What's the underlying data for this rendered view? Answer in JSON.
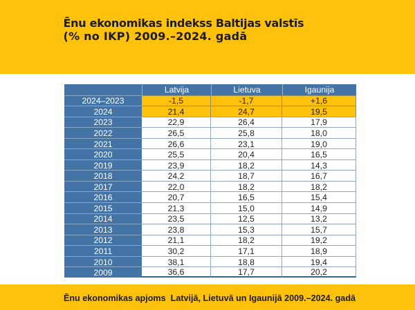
{
  "page": {
    "background": "#ffffff",
    "accent_yellow": "#fec20d",
    "accent_blue": "#4473a5",
    "border_blue": "#36608f",
    "text_dark": "#1c1c26"
  },
  "header": {
    "title_line1": "Ēnu ekonomikas indekss Baltijas valstīs",
    "title_line2": "(% no IKP) 2009.–2024. gadā"
  },
  "footer": {
    "caption": "Ēnu ekonomikas apjoms  Latvijā, Lietuvā un Igaunijā 2009.–2024. gadā"
  },
  "chart_data": {
    "type": "table",
    "title": "Ēnu ekonomikas indekss Baltijas valstīs (% no IKP) 2009.–2024. gadā",
    "columns": [
      "",
      "Latvija",
      "Lietuva",
      "Igaunija"
    ],
    "rows": [
      {
        "label": "2024–2023",
        "values": [
          "-1,5",
          "-1,7",
          "+1,6"
        ],
        "highlight": true
      },
      {
        "label": "2024",
        "values": [
          "21,4",
          "24,7",
          "19,5"
        ],
        "highlight": true
      },
      {
        "label": "2023",
        "values": [
          "22,9",
          "26,4",
          "17,9"
        ],
        "highlight": false
      },
      {
        "label": "2022",
        "values": [
          "26,5",
          "25,8",
          "18,0"
        ],
        "highlight": false
      },
      {
        "label": "2021",
        "values": [
          "26,6",
          "23,1",
          "19,0"
        ],
        "highlight": false
      },
      {
        "label": "2020",
        "values": [
          "25,5",
          "20,4",
          "16,5"
        ],
        "highlight": false
      },
      {
        "label": "2019",
        "values": [
          "23,9",
          "18,2",
          "14,3"
        ],
        "highlight": false
      },
      {
        "label": "2018",
        "values": [
          "24,2",
          "18,7",
          "16,7"
        ],
        "highlight": false
      },
      {
        "label": "2017",
        "values": [
          "22,0",
          "18,2",
          "18,2"
        ],
        "highlight": false
      },
      {
        "label": "2016",
        "values": [
          "20,7",
          "16,5",
          "15,4"
        ],
        "highlight": false
      },
      {
        "label": "2015",
        "values": [
          "21,3",
          "15,0",
          "14,9"
        ],
        "highlight": false
      },
      {
        "label": "2014",
        "values": [
          "23,5",
          "12,5",
          "13,2"
        ],
        "highlight": false
      },
      {
        "label": "2013",
        "values": [
          "23,8",
          "15,3",
          "15,7"
        ],
        "highlight": false
      },
      {
        "label": "2012",
        "values": [
          "21,1",
          "18,2",
          "19,2"
        ],
        "highlight": false
      },
      {
        "label": "2011",
        "values": [
          "30,2",
          "17,1",
          "18,9"
        ],
        "highlight": false
      },
      {
        "label": "2010",
        "values": [
          "38,1",
          "18,8",
          "19,4"
        ],
        "highlight": false
      },
      {
        "label": "2009",
        "values": [
          "36,6",
          "17,7",
          "20,2"
        ],
        "highlight": false
      }
    ]
  }
}
